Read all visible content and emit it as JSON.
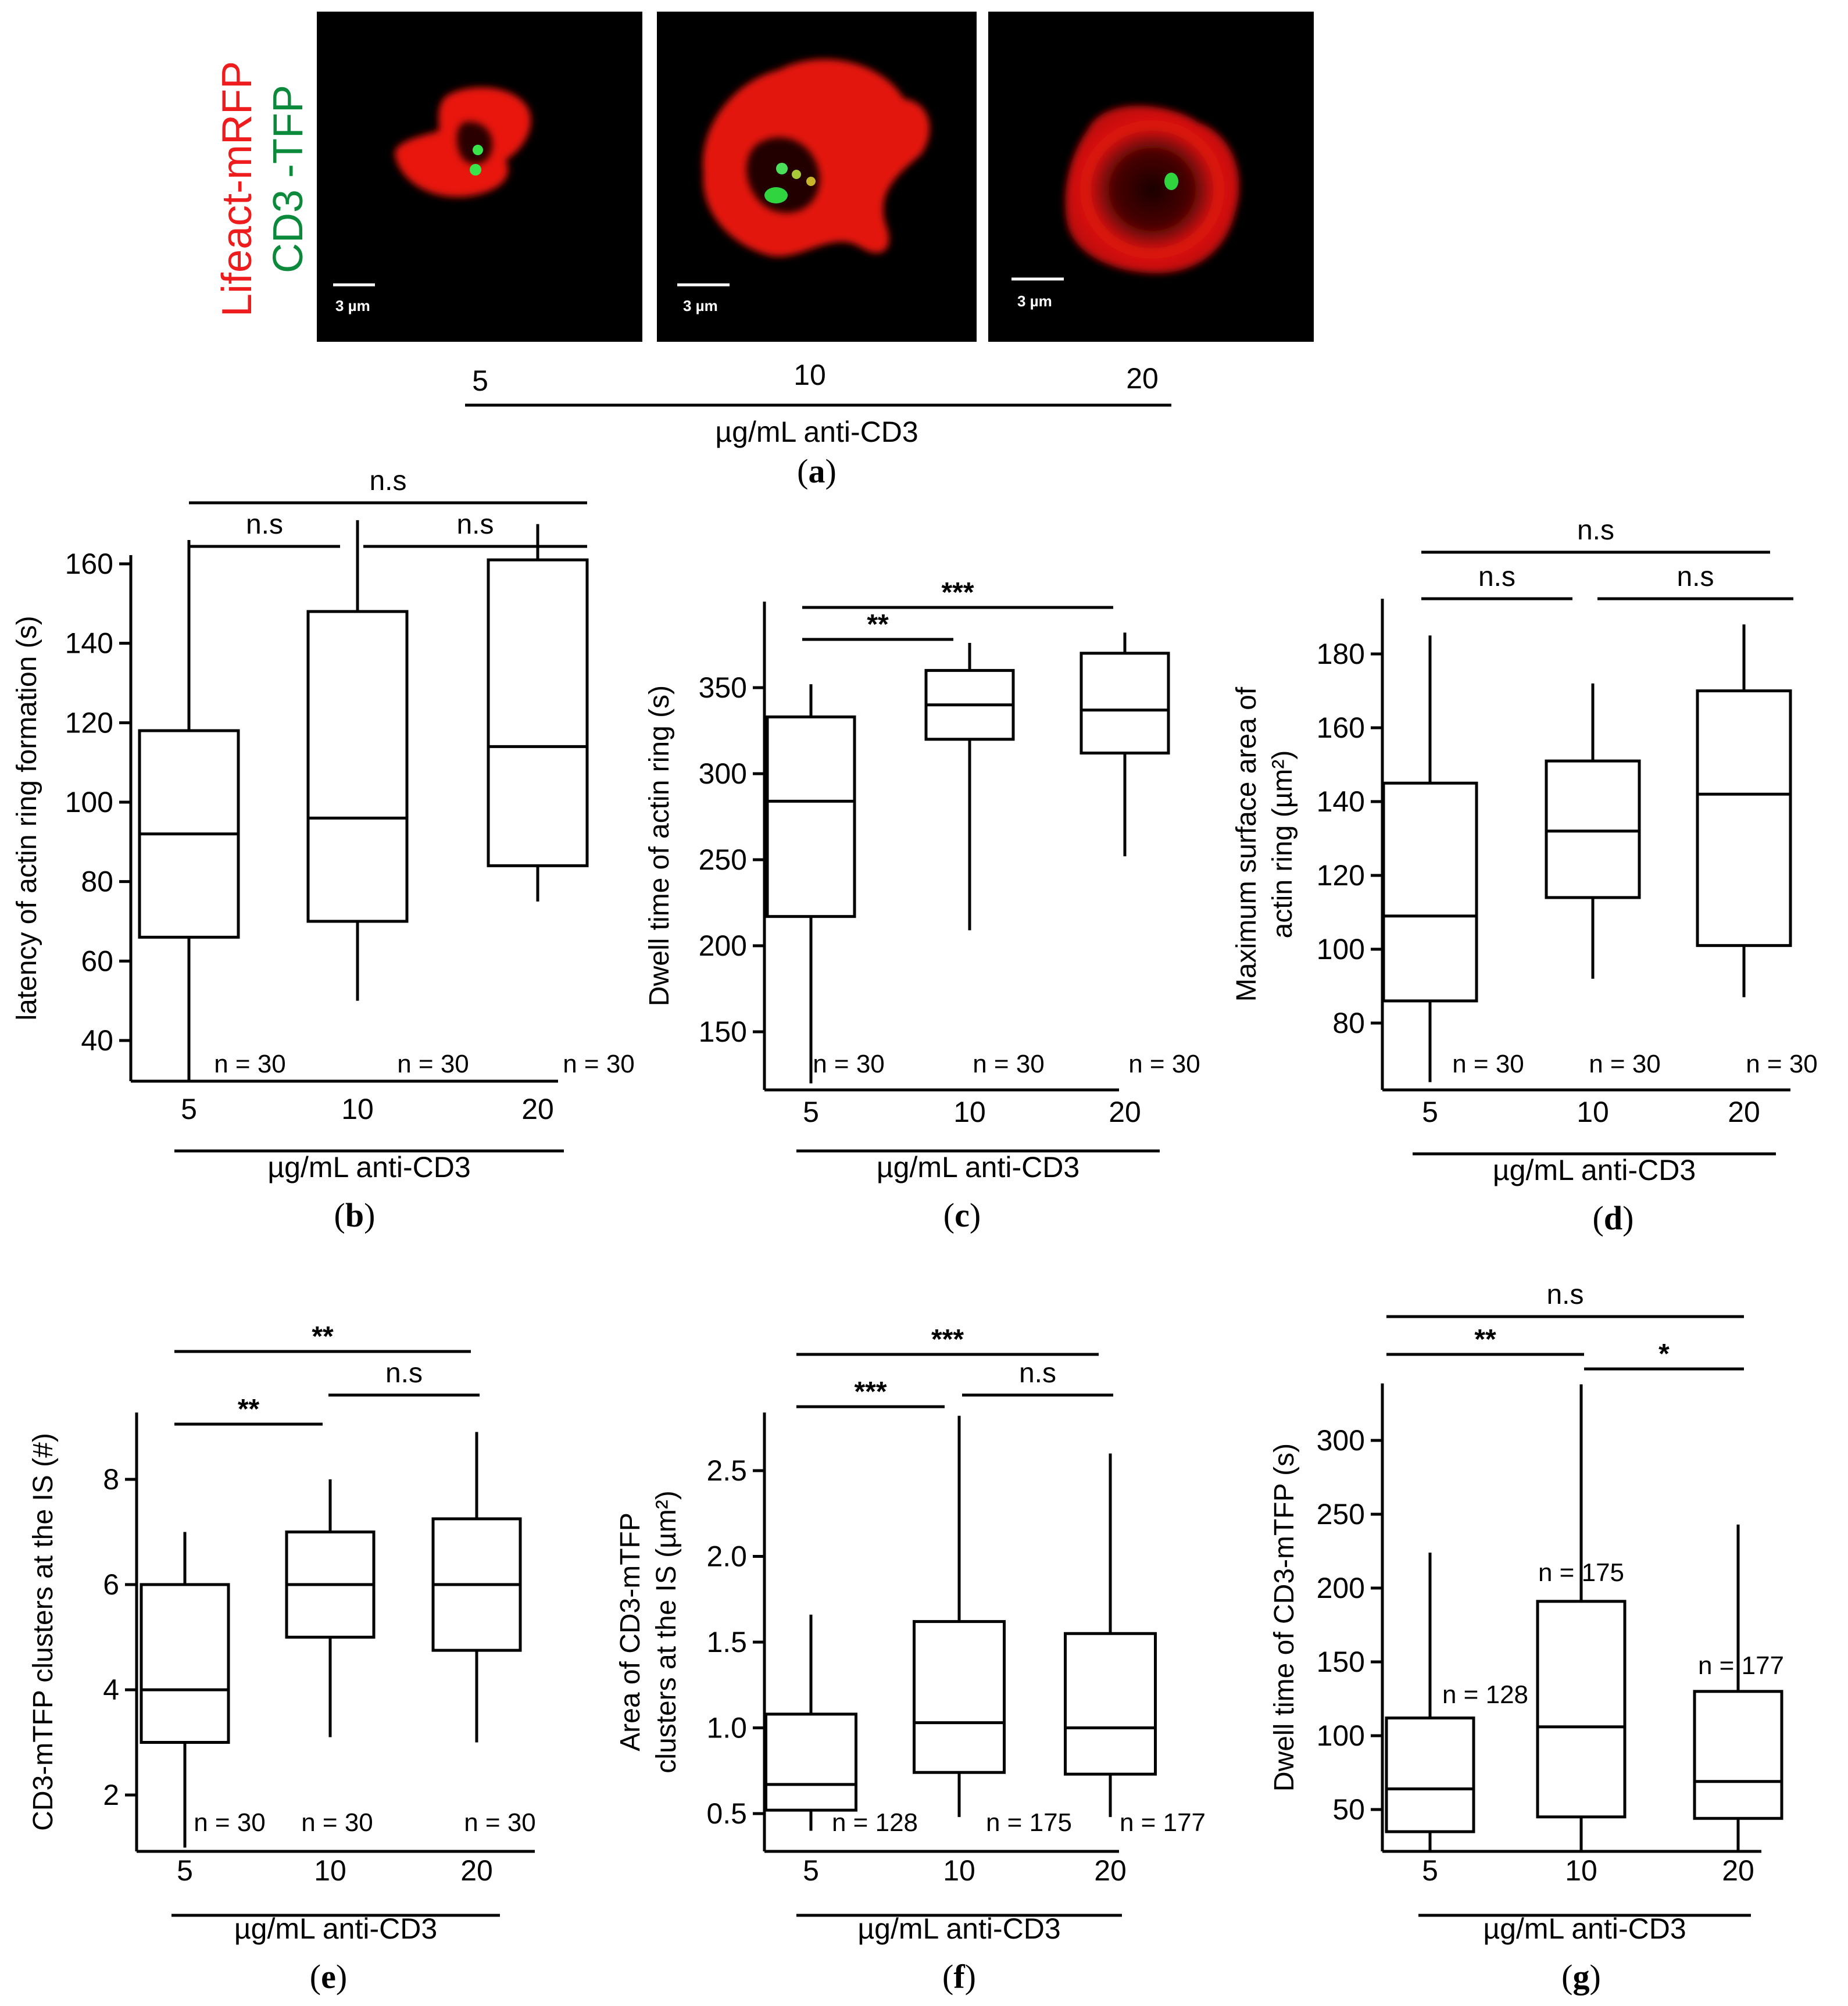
{
  "figure": {
    "panel_a": {
      "legend_lines": [
        "Lifeact-mRFP",
        "CD3 -TFP"
      ],
      "legend_colors": [
        "#ee1c1c",
        "#0b8a3c"
      ],
      "scale_bar_label": "3 µm",
      "conditions": [
        "5",
        "10",
        "20"
      ],
      "axis_label": "µg/mL anti-CD3",
      "caption": "a"
    }
  },
  "chart_data": [
    {
      "panel": "b",
      "type": "box",
      "ylabel": "latency of actin ring formation (s)",
      "xlabel": "µg/mL anti-CD3",
      "categories": [
        "5",
        "10",
        "20"
      ],
      "yticks": [
        40,
        60,
        80,
        100,
        120,
        140,
        160
      ],
      "ylim": [
        27,
        170
      ],
      "boxes": [
        {
          "lw": 27,
          "q1": 66,
          "median": 92,
          "q3": 118,
          "uw": 166,
          "n": "n = 30"
        },
        {
          "lw": 50,
          "q1": 70,
          "median": 96,
          "q3": 148,
          "uw": 171,
          "n": "n = 30"
        },
        {
          "lw": 75,
          "q1": 84,
          "median": 114,
          "q3": 161,
          "uw": 170,
          "n": "n = 30"
        }
      ],
      "comparisons": [
        {
          "from": 0,
          "to": 2,
          "label": "n.s"
        },
        {
          "from": 0,
          "to": 1,
          "label": "n.s"
        },
        {
          "from": 1,
          "to": 2,
          "label": "n.s"
        }
      ],
      "caption": "b"
    },
    {
      "panel": "c",
      "type": "box",
      "ylabel": "Dwell time of actin ring (s)",
      "xlabel": "µg/mL anti-CD3",
      "categories": [
        "5",
        "10",
        "20"
      ],
      "yticks": [
        150,
        200,
        250,
        300,
        350
      ],
      "ylim": [
        120,
        400
      ],
      "boxes": [
        {
          "lw": 120,
          "q1": 217,
          "median": 284,
          "q3": 333,
          "uw": 352,
          "n": "n = 30"
        },
        {
          "lw": 209,
          "q1": 320,
          "median": 340,
          "q3": 360,
          "uw": 376,
          "n": "n = 30"
        },
        {
          "lw": 252,
          "q1": 312,
          "median": 337,
          "q3": 370,
          "uw": 382,
          "n": "n = 30"
        }
      ],
      "comparisons": [
        {
          "from": 0,
          "to": 2,
          "label": "***"
        },
        {
          "from": 0,
          "to": 1,
          "label": "**"
        }
      ],
      "caption": "c"
    },
    {
      "panel": "d",
      "type": "box",
      "ylabel": "Maximum surface area of actin ring (µm²)",
      "ylabel_lines": [
        "Maximum surface area of",
        "actin ring  (µm²)"
      ],
      "xlabel": "µg/mL anti-CD3",
      "categories": [
        "5",
        "10",
        "20"
      ],
      "yticks": [
        80,
        100,
        120,
        140,
        160,
        180
      ],
      "ylim": [
        64,
        195
      ],
      "boxes": [
        {
          "lw": 64,
          "q1": 86,
          "median": 109,
          "q3": 145,
          "uw": 185,
          "n": "n = 30"
        },
        {
          "lw": 92,
          "q1": 114,
          "median": 132,
          "q3": 151,
          "uw": 172,
          "n": "n = 30"
        },
        {
          "lw": 87,
          "q1": 101,
          "median": 142,
          "q3": 170,
          "uw": 188,
          "n": "n = 30"
        }
      ],
      "comparisons": [
        {
          "from": 0,
          "to": 2,
          "label": "n.s"
        },
        {
          "from": 0,
          "to": 1,
          "label": "n.s"
        },
        {
          "from": 1,
          "to": 2,
          "label": "n.s"
        }
      ],
      "caption": "d"
    },
    {
      "panel": "e",
      "type": "box",
      "ylabel": "CD3-mTFP clusters at the IS (#)",
      "xlabel": "µg/mL anti-CD3",
      "categories": [
        "5",
        "10",
        "20"
      ],
      "yticks": [
        2,
        4,
        6,
        8
      ],
      "ylim": [
        1,
        9.2
      ],
      "boxes": [
        {
          "lw": 1,
          "q1": 3,
          "median": 4,
          "q3": 6,
          "uw": 7,
          "n": "n = 30"
        },
        {
          "lw": 3.1,
          "q1": 5,
          "median": 6,
          "q3": 7,
          "uw": 8,
          "n": "n = 30"
        },
        {
          "lw": 3,
          "q1": 4.75,
          "median": 6,
          "q3": 7.25,
          "uw": 8.9,
          "n": "n = 30"
        }
      ],
      "comparisons": [
        {
          "from": 0,
          "to": 2,
          "label": "**"
        },
        {
          "from": 1,
          "to": 2,
          "label": "n.s"
        },
        {
          "from": 0,
          "to": 1,
          "label": "**"
        }
      ],
      "caption": "e"
    },
    {
      "panel": "f",
      "type": "box",
      "ylabel": "Area of CD3-mTFP clusters at the IS (µm²)",
      "ylabel_lines": [
        "Area of  CD3-mTFP",
        "clusters at the IS (µm²)"
      ],
      "xlabel": "µg/mL anti-CD3",
      "categories": [
        "5",
        "10",
        "20"
      ],
      "yticks": [
        0.5,
        1.0,
        1.5,
        2.0,
        2.5
      ],
      "ytick_labels": [
        "0.5",
        "1.0",
        "1.5",
        "2.0",
        "2.5"
      ],
      "ylim": [
        0.4,
        2.85
      ],
      "boxes": [
        {
          "lw": 0.4,
          "q1": 0.52,
          "median": 0.67,
          "q3": 1.08,
          "uw": 1.66,
          "n": "n = 128"
        },
        {
          "lw": 0.48,
          "q1": 0.74,
          "median": 1.03,
          "q3": 1.62,
          "uw": 2.82,
          "n": "n = 175"
        },
        {
          "lw": 0.48,
          "q1": 0.73,
          "median": 1.0,
          "q3": 1.55,
          "uw": 2.6,
          "n": "n = 177"
        }
      ],
      "comparisons": [
        {
          "from": 0,
          "to": 2,
          "label": "***"
        },
        {
          "from": 0,
          "to": 1,
          "label": "***"
        },
        {
          "from": 1,
          "to": 2,
          "label": "n.s"
        }
      ],
      "caption": "f"
    },
    {
      "panel": "g",
      "type": "box",
      "ylabel": "Dwell time of CD3-mTFP (s)",
      "xlabel": "µg/mL anti-CD3",
      "categories": [
        "5",
        "10",
        "20"
      ],
      "yticks": [
        50,
        100,
        150,
        200,
        250,
        300
      ],
      "ylim": [
        22,
        340
      ],
      "boxes": [
        {
          "lw": 22,
          "q1": 35,
          "median": 64,
          "q3": 112,
          "uw": 224,
          "n": "n = 128"
        },
        {
          "lw": 22,
          "q1": 45,
          "median": 106,
          "q3": 191,
          "uw": 338,
          "n": "n = 175"
        },
        {
          "lw": 22,
          "q1": 44,
          "median": 69,
          "q3": 130,
          "uw": 243,
          "n": "n = 177"
        }
      ],
      "comparisons": [
        {
          "from": 0,
          "to": 2,
          "label": "n.s"
        },
        {
          "from": 0,
          "to": 1,
          "label": "**"
        },
        {
          "from": 1,
          "to": 2,
          "label": "*"
        }
      ],
      "caption": "g"
    }
  ]
}
